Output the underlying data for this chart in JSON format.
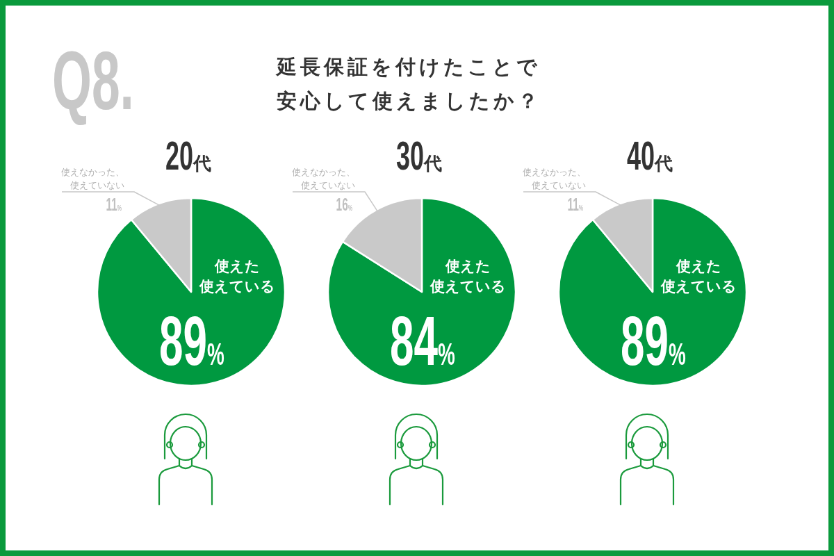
{
  "chart_data": [
    {
      "type": "other",
      "title": "延長保証を付けたことで安心して使えましたか？",
      "annotations": [
        "Q8."
      ]
    },
    {
      "type": "pie",
      "title": "20代",
      "categories": [
        "使えた使えている",
        "使えなかった、使えていない"
      ],
      "values": [
        89,
        11
      ],
      "colors": [
        "#009940",
        "#c9c9c9"
      ],
      "value_labels": [
        "89%",
        "11%"
      ]
    },
    {
      "type": "pie",
      "title": "30代",
      "categories": [
        "使えた使えている",
        "使えなかった、使えていない"
      ],
      "values": [
        84,
        16
      ],
      "colors": [
        "#009940",
        "#c9c9c9"
      ],
      "value_labels": [
        "84%",
        "16%"
      ]
    },
    {
      "type": "pie",
      "title": "40代",
      "categories": [
        "使えた使えている",
        "使えなかった、使えていない"
      ],
      "values": [
        89,
        11
      ],
      "colors": [
        "#009940",
        "#c9c9c9"
      ],
      "value_labels": [
        "89%",
        "11%"
      ]
    }
  ]
}
